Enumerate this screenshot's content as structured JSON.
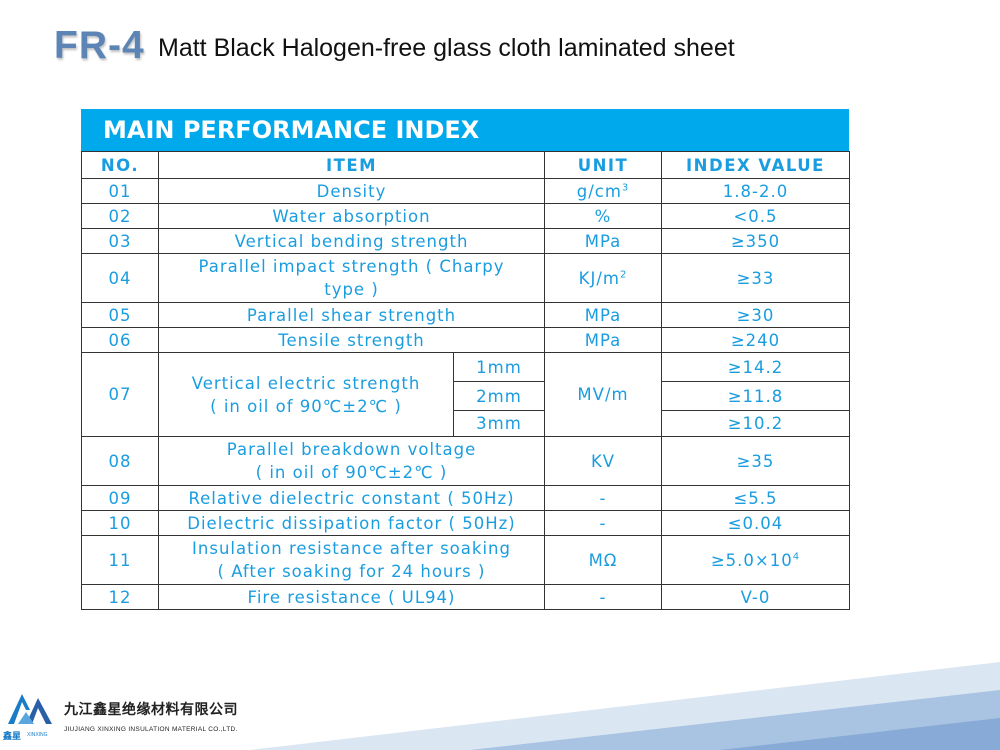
{
  "header": {
    "code": "FR-4",
    "title": "Matt Black Halogen-free glass cloth laminated sheet"
  },
  "banner": "MAIN PERFORMANCE INDEX",
  "table": {
    "headers": [
      "NO.",
      "ITEM",
      "UNIT",
      "INDEX VALUE"
    ],
    "rows": [
      {
        "no": "01",
        "item": "Density",
        "unit": "g/cm",
        "unit_sup": "3",
        "value": "1.8-2.0"
      },
      {
        "no": "02",
        "item": "Water absorption",
        "unit": "%",
        "value": "<0.5"
      },
      {
        "no": "03",
        "item": "Vertical bending strength",
        "unit": "MPa",
        "value": "≥350"
      },
      {
        "no": "04",
        "item_line1": "Parallel impact strength ( Charpy",
        "item_line2": "type )",
        "unit": "KJ/m",
        "unit_sup": "2",
        "value": "≥33"
      },
      {
        "no": "05",
        "item": "Parallel shear strength",
        "unit": "MPa",
        "value": "≥30"
      },
      {
        "no": "06",
        "item": "Tensile strength",
        "unit": "MPa",
        "value": "≥240"
      },
      {
        "no": "07",
        "item_line1": "Vertical electric strength",
        "item_line2": "( in oil of 90℃±2℃ )",
        "unit": "MV/m",
        "sub": [
          {
            "thickness": "1mm",
            "value": "≥14.2"
          },
          {
            "thickness": "2mm",
            "value": "≥11.8"
          },
          {
            "thickness": "3mm",
            "value": "≥10.2"
          }
        ]
      },
      {
        "no": "08",
        "item_line1": "Parallel breakdown voltage",
        "item_line2": "( in oil of 90℃±2℃ )",
        "unit": "KV",
        "value": "≥35"
      },
      {
        "no": "09",
        "item": "Relative dielectric constant ( 50Hz)",
        "unit": "-",
        "value": "≤5.5"
      },
      {
        "no": "10",
        "item": "Dielectric dissipation factor ( 50Hz)",
        "unit": "-",
        "value": "≤0.04"
      },
      {
        "no": "11",
        "item_line1": "Insulation resistance after soaking",
        "item_line2": "( After soaking for 24 hours )",
        "unit": "MΩ",
        "value": "≥5.0×10",
        "value_sup": "4"
      },
      {
        "no": "12",
        "item": "Fire resistance ( UL94)",
        "unit": "-",
        "value": "V-0"
      }
    ]
  },
  "footer": {
    "company_cn": "九江鑫星绝缘材料有限公司",
    "company_en": "JIUJIANG XINXING INSULATION MATERIAL CO.,LTD.",
    "logo_cn": "鑫星",
    "logo_en": "XINXING"
  },
  "colors": {
    "banner": "#00a8ec",
    "table_text": "#1a9de0",
    "title_code": "#5c84b4"
  }
}
